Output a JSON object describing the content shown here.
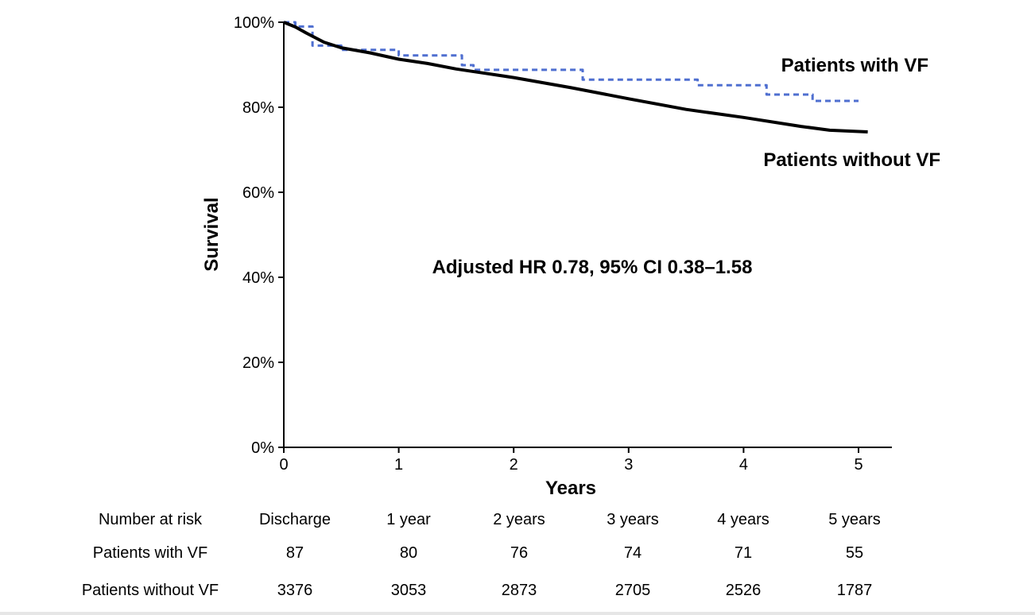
{
  "chart_data": {
    "type": "line",
    "xlabel": "Years",
    "ylabel": "Survival",
    "xlim": [
      0,
      5.25
    ],
    "ylim": [
      0,
      100
    ],
    "x_ticks": [
      "0",
      "1",
      "2",
      "3",
      "4",
      "5"
    ],
    "y_ticks": [
      "0%",
      "20%",
      "40%",
      "60%",
      "80%",
      "100%"
    ],
    "grid": false,
    "annotation": "Adjusted HR 0.78, 95% CI 0.38–1.58",
    "series": [
      {
        "name": "Patients with VF",
        "color": "#4f6fd0",
        "style": "dashed-step",
        "x": [
          0,
          0.1,
          0.1,
          0.25,
          0.25,
          0.5,
          0.5,
          1.0,
          1.0,
          1.55,
          1.55,
          1.65,
          1.65,
          2.6,
          2.6,
          3.6,
          3.6,
          4.2,
          4.2,
          4.6,
          4.6,
          5.0
        ],
        "y": [
          100,
          100,
          99,
          99,
          94.5,
          94.5,
          93.5,
          93.5,
          92.2,
          92.2,
          89.9,
          89.9,
          88.8,
          88.8,
          86.5,
          86.5,
          85.2,
          85.2,
          83,
          83,
          81.5,
          81.5
        ]
      },
      {
        "name": "Patients without VF",
        "color": "#000000",
        "style": "solid",
        "x": [
          0,
          0.1,
          0.2,
          0.35,
          0.5,
          0.75,
          1.0,
          1.25,
          1.5,
          1.75,
          2.0,
          2.5,
          3.0,
          3.5,
          4.0,
          4.5,
          4.75,
          5.08
        ],
        "y": [
          100,
          98.9,
          97.4,
          95.3,
          94.0,
          92.8,
          91.3,
          90.3,
          89.0,
          88.0,
          87.0,
          84.6,
          82.0,
          79.5,
          77.6,
          75.5,
          74.6,
          74.2
        ]
      }
    ],
    "legend_labels": [
      {
        "series": 0,
        "text": "Patients with VF"
      },
      {
        "series": 1,
        "text": "Patients without VF"
      }
    ],
    "risk_table": {
      "header": "Number at risk",
      "columns": [
        "Discharge",
        "1 year",
        "2 years",
        "3 years",
        "4 years",
        "5 years"
      ],
      "rows": [
        {
          "label": "Patients with VF",
          "values": [
            "87",
            "80",
            "76",
            "74",
            "71",
            "55"
          ]
        },
        {
          "label": "Patients without VF",
          "values": [
            "3376",
            "3053",
            "2873",
            "2705",
            "2526",
            "1787"
          ]
        }
      ]
    }
  }
}
